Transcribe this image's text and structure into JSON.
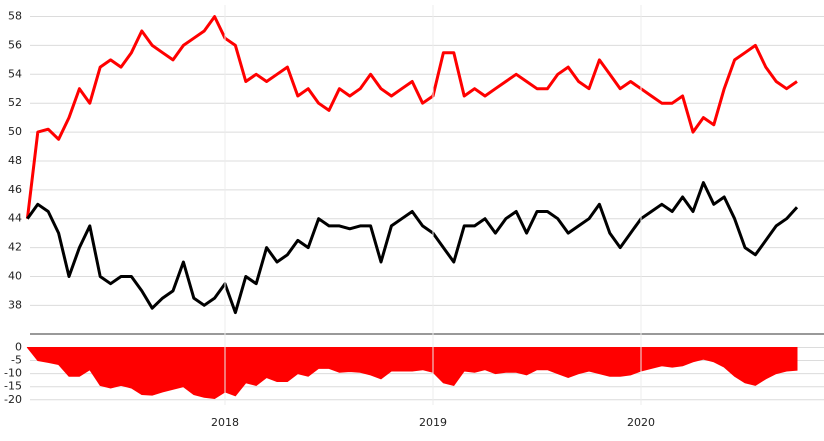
{
  "chart_data": [
    {
      "type": "line",
      "grid": true,
      "ylim": [
        36.5,
        58.8
      ],
      "yticks": [
        38,
        40,
        42,
        44,
        46,
        48,
        50,
        52,
        54,
        56,
        58
      ],
      "series": [
        {
          "color": "#ff0000",
          "values": [
            44,
            50,
            50.2,
            49.5,
            51,
            53,
            52,
            54.5,
            55,
            54.5,
            55.5,
            57,
            56,
            55.5,
            55,
            56,
            56.5,
            57,
            58,
            56.5,
            56,
            53.5,
            54,
            53.5,
            54,
            54.5,
            52.5,
            53,
            52,
            51.5,
            53,
            52.5,
            53,
            54,
            53,
            52.5,
            53,
            53.5,
            52,
            52.5,
            55.5,
            55.5,
            52.5,
            53,
            52.5,
            53,
            53.5,
            54,
            53.5,
            53,
            53,
            54,
            54.5,
            53.5,
            53,
            55,
            54,
            53,
            53.5,
            53,
            52.5,
            52,
            52,
            52.5,
            50,
            51,
            50.5,
            53,
            55,
            55.5,
            56,
            54.5,
            53.5,
            53,
            53.5
          ]
        },
        {
          "color": "#000000",
          "values": [
            44,
            45,
            44.5,
            43,
            40,
            42,
            43.5,
            40,
            39.5,
            40,
            40,
            39,
            37.8,
            38.5,
            39,
            41,
            38.5,
            38,
            38.5,
            39.5,
            37.5,
            40,
            39.5,
            42,
            41,
            41.5,
            42.5,
            42,
            44,
            43.5,
            43.5,
            43.3,
            43.5,
            43.5,
            41,
            43.5,
            44,
            44.5,
            43.5,
            43,
            42,
            41,
            43.5,
            43.5,
            44,
            43,
            44,
            44.5,
            43,
            44.5,
            44.5,
            44,
            43,
            43.5,
            44,
            45,
            43,
            42,
            43,
            44,
            44.5,
            45,
            44.5,
            45.5,
            44.5,
            46.5,
            45,
            45.5,
            44,
            42,
            41.5,
            42.5,
            43.5,
            44,
            44.8
          ]
        }
      ]
    },
    {
      "type": "area",
      "grid": true,
      "color": "#ff0000",
      "ylim": [
        -22,
        4
      ],
      "yticks": [
        0,
        -5,
        -10,
        -15,
        -20
      ],
      "categories": [
        null,
        null,
        null,
        null,
        null,
        null,
        null,
        null,
        null,
        null,
        null,
        null,
        null,
        null,
        null,
        null,
        null,
        null,
        null,
        "2018",
        null,
        null,
        null,
        null,
        null,
        null,
        null,
        null,
        null,
        null,
        null,
        null,
        null,
        null,
        null,
        null,
        null,
        null,
        null,
        "2019",
        null,
        null,
        null,
        null,
        null,
        null,
        null,
        null,
        null,
        null,
        null,
        null,
        null,
        null,
        null,
        null,
        null,
        null,
        null,
        "2020",
        null,
        null,
        null,
        null,
        null,
        null,
        null,
        null,
        null,
        null,
        null,
        null,
        null,
        null,
        null
      ],
      "values": [
        0,
        -5,
        -5.7,
        -6.5,
        -11,
        -11,
        -8.5,
        -14.5,
        -15.5,
        -14.5,
        -15.5,
        -18,
        -18.2,
        -17,
        -16,
        -15,
        -18,
        -19,
        -19.5,
        -17,
        -18.5,
        -13.5,
        -14.5,
        -11.5,
        -13,
        -13,
        -10,
        -11,
        -8,
        -8,
        -9.5,
        -9.2,
        -9.5,
        -10.5,
        -12,
        -9,
        -9,
        -9,
        -8.5,
        -9.5,
        -13.5,
        -14.5,
        -9,
        -9.5,
        -8.5,
        -10,
        -9.5,
        -9.5,
        -10.5,
        -8.5,
        -8.5,
        -10,
        -11.5,
        -10,
        -9,
        -10,
        -11,
        -11,
        -10.5,
        -9,
        -8,
        -7,
        -7.5,
        -7,
        -5.5,
        -4.5,
        -5.5,
        -7.5,
        -11,
        -13.5,
        -14.5,
        -12,
        -10,
        -9,
        -8.7
      ]
    }
  ]
}
